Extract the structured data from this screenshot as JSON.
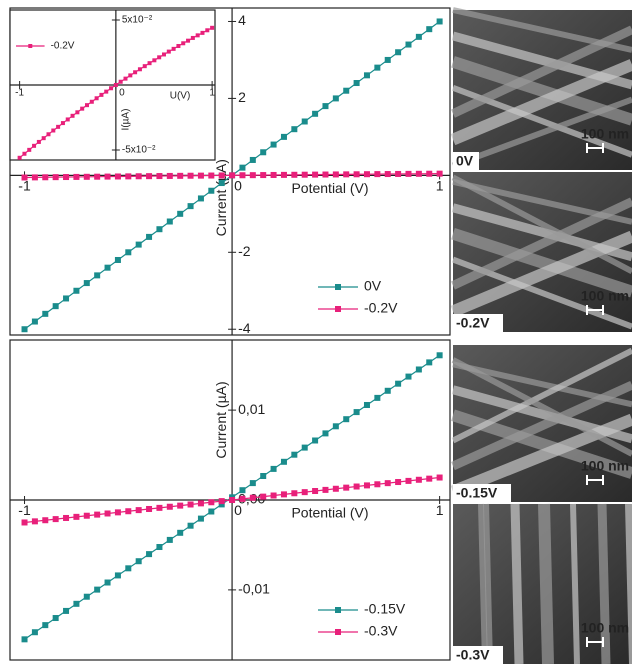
{
  "chart_data": [
    {
      "type": "line",
      "x_label": "Potential (V)",
      "y_label": "Current (µA)",
      "x": [
        -1,
        -0.95,
        -0.9,
        -0.85,
        -0.8,
        -0.75,
        -0.7,
        -0.65,
        -0.6,
        -0.55,
        -0.5,
        -0.45,
        -0.4,
        -0.35,
        -0.3,
        -0.25,
        -0.2,
        -0.15,
        -0.1,
        -0.05,
        0,
        0.05,
        0.1,
        0.15,
        0.2,
        0.25,
        0.3,
        0.35,
        0.4,
        0.45,
        0.5,
        0.55,
        0.6,
        0.65,
        0.7,
        0.75,
        0.8,
        0.85,
        0.9,
        0.95,
        1
      ],
      "series": [
        {
          "name": "0V",
          "color": "#1a8c8c",
          "values": [
            -4,
            -3.8,
            -3.6,
            -3.4,
            -3.2,
            -3,
            -2.8,
            -2.6,
            -2.4,
            -2.2,
            -2,
            -1.8,
            -1.6,
            -1.4,
            -1.2,
            -1,
            -0.8,
            -0.6,
            -0.4,
            -0.2,
            0,
            0.2,
            0.4,
            0.6,
            0.8,
            1,
            1.2,
            1.4,
            1.6,
            1.8,
            2,
            2.2,
            2.4,
            2.6,
            2.8,
            3,
            3.2,
            3.4,
            3.6,
            3.8,
            4
          ]
        },
        {
          "name": "-0.2V",
          "color": "#e8207a",
          "values": [
            -0.056,
            -0.0529,
            -0.0499,
            -0.0468,
            -0.0438,
            -0.0409,
            -0.0379,
            -0.035,
            -0.0322,
            -0.0293,
            -0.0265,
            -0.0237,
            -0.021,
            -0.0182,
            -0.0155,
            -0.0129,
            -0.0102,
            -0.0076,
            -0.0051,
            -0.0025,
            0,
            0.0025,
            0.0049,
            0.0074,
            0.0098,
            0.0121,
            0.0145,
            0.0168,
            0.019,
            0.0213,
            0.0235,
            0.0257,
            0.0278,
            0.03,
            0.0321,
            0.0341,
            0.0362,
            0.0382,
            0.0401,
            0.0421,
            0.044
          ]
        }
      ],
      "xlim": [
        -1.07,
        1.05
      ],
      "ylim": [
        -4.15,
        4.35
      ],
      "xticks": [
        -1,
        0,
        1
      ],
      "yticks": [
        -4,
        -2,
        2,
        4
      ]
    },
    {
      "type": "line",
      "x_label": "U(V)",
      "y_label": "I(µA)",
      "x": [
        -1,
        -0.95,
        -0.9,
        -0.85,
        -0.8,
        -0.75,
        -0.7,
        -0.65,
        -0.6,
        -0.55,
        -0.5,
        -0.45,
        -0.4,
        -0.35,
        -0.3,
        -0.25,
        -0.2,
        -0.15,
        -0.1,
        -0.05,
        0,
        0.05,
        0.1,
        0.15,
        0.2,
        0.25,
        0.3,
        0.35,
        0.4,
        0.45,
        0.5,
        0.55,
        0.6,
        0.65,
        0.7,
        0.75,
        0.8,
        0.85,
        0.9,
        0.95,
        1
      ],
      "series": [
        {
          "name": "-0.2V",
          "color": "#e8207a",
          "values": [
            -0.056,
            -0.0529,
            -0.0499,
            -0.0468,
            -0.0438,
            -0.0409,
            -0.0379,
            -0.035,
            -0.0322,
            -0.0293,
            -0.0265,
            -0.0237,
            -0.021,
            -0.0182,
            -0.0155,
            -0.0129,
            -0.0102,
            -0.0076,
            -0.0051,
            -0.0025,
            0,
            0.0025,
            0.0049,
            0.0074,
            0.0098,
            0.0121,
            0.0145,
            0.0168,
            0.019,
            0.0213,
            0.0235,
            0.0257,
            0.0278,
            0.03,
            0.0321,
            0.0341,
            0.0362,
            0.0382,
            0.0401,
            0.0421,
            0.044
          ]
        }
      ],
      "xlim": [
        -1.1,
        1.03
      ],
      "ylim": [
        -0.0577,
        0.0577
      ],
      "xticks": [
        -1,
        0,
        1
      ],
      "yticks": [
        {
          "value": -0.05,
          "label": "-5x10⁻²"
        },
        {
          "value": 0.05,
          "label": "5x10⁻²"
        }
      ]
    },
    {
      "type": "line",
      "x_label": "Potential (V)",
      "y_label": "Current (µA)",
      "x": [
        -1,
        -0.95,
        -0.9,
        -0.85,
        -0.8,
        -0.75,
        -0.7,
        -0.65,
        -0.6,
        -0.55,
        -0.5,
        -0.45,
        -0.4,
        -0.35,
        -0.3,
        -0.25,
        -0.2,
        -0.15,
        -0.1,
        -0.05,
        0,
        0.05,
        0.1,
        0.15,
        0.2,
        0.25,
        0.3,
        0.35,
        0.4,
        0.45,
        0.5,
        0.55,
        0.6,
        0.65,
        0.7,
        0.75,
        0.8,
        0.85,
        0.9,
        0.95,
        1
      ],
      "series": [
        {
          "name": "-0.15V",
          "color": "#1a8c8c",
          "values": [
            -0.0155,
            -0.01471,
            -0.01392,
            -0.01313,
            -0.01234,
            -0.01155,
            -0.01076,
            -0.00997,
            -0.00918,
            -0.00839,
            -0.0076,
            -0.00681,
            -0.00602,
            -0.00523,
            -0.00444,
            -0.00365,
            -0.00286,
            -0.00207,
            -0.00128,
            -0.00049,
            0.0003,
            0.00109,
            0.00188,
            0.00267,
            0.00346,
            0.00425,
            0.00504,
            0.00583,
            0.00662,
            0.00741,
            0.0082,
            0.00899,
            0.00978,
            0.01057,
            0.01136,
            0.01215,
            0.01294,
            0.01373,
            0.01452,
            0.01531,
            0.0161
          ]
        },
        {
          "name": "-0.3V",
          "color": "#e8207a",
          "values": [
            -0.0025,
            -0.002375,
            -0.00225,
            -0.002125,
            -0.002,
            -0.001875,
            -0.00175,
            -0.001625,
            -0.0015,
            -0.001375,
            -0.00125,
            -0.001125,
            -0.001,
            -0.000875,
            -0.00075,
            -0.000625,
            -0.0005,
            -0.000375,
            -0.00025,
            -0.000125,
            0,
            0.000125,
            0.00025,
            0.000375,
            0.0005,
            0.000625,
            0.00075,
            0.000875,
            0.001,
            0.001125,
            0.00125,
            0.001375,
            0.0015,
            0.001625,
            0.00175,
            0.001875,
            0.002,
            0.002125,
            0.00225,
            0.002375,
            0.0025
          ]
        }
      ],
      "xlim": [
        -1.07,
        1.05
      ],
      "ylim": [
        -0.0178,
        0.0178
      ],
      "xticks": [
        -1,
        0,
        1
      ],
      "yticks": [
        {
          "value": -0.01,
          "label": "-0,01"
        },
        {
          "value": 0,
          "label": "0,00"
        },
        {
          "value": 0.01,
          "label": "0,01"
        }
      ]
    }
  ],
  "images": [
    {
      "label": "0V",
      "scale_bar": "100 nm"
    },
    {
      "label": "-0.2V",
      "scale_bar": "100 nm"
    },
    {
      "label": "-0.15V",
      "scale_bar": "100 nm"
    },
    {
      "label": "-0.3V",
      "scale_bar": "100 nm"
    }
  ]
}
